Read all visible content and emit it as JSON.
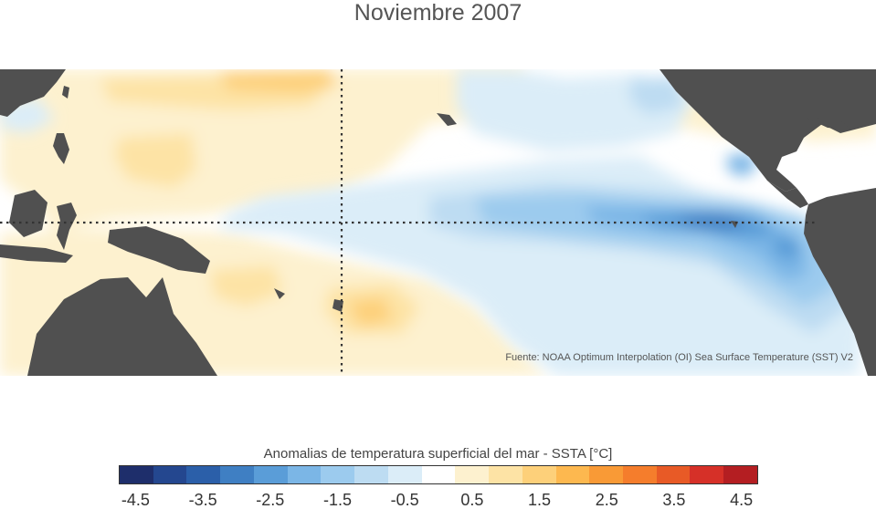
{
  "title": "Noviembre 2007",
  "source": "Fuente: NOAA Optimum Interpolation (OI) Sea Surface Temperature (SST) V2",
  "colorbar": {
    "label": "Anomalias de temperatura superficial del mar - SSTA  [°C]",
    "colors": [
      "#1e2e6b",
      "#24478f",
      "#2b5fa9",
      "#3f7fc3",
      "#5a9dd8",
      "#7bb6e6",
      "#9ccbee",
      "#bddcf2",
      "#dbedf8",
      "#ffffff",
      "#fdf1cf",
      "#fde3a5",
      "#fdd07a",
      "#fdb84f",
      "#f99a36",
      "#f57d2c",
      "#e85a26",
      "#d63028",
      "#b41e22"
    ],
    "ticks": [
      "-4.5",
      "-3.5",
      "-2.5",
      "-1.5",
      "-0.5",
      "0.5",
      "1.5",
      "2.5",
      "3.5",
      "4.5"
    ]
  }
}
